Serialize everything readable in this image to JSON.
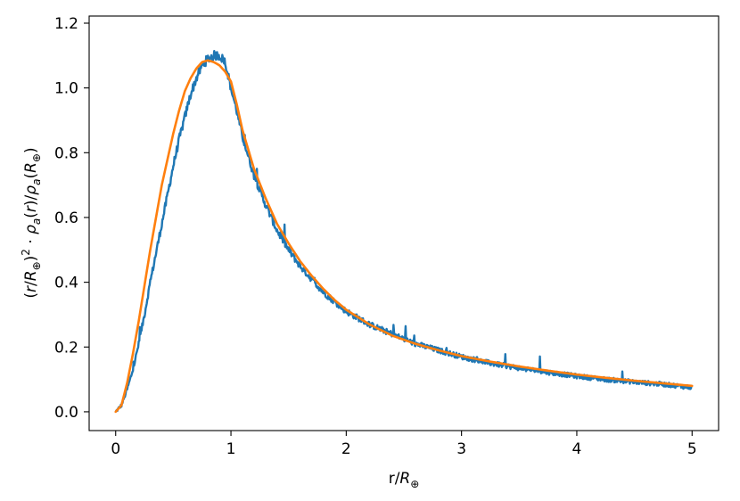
{
  "chart_data": {
    "type": "line",
    "title": "",
    "xlabel": "r/R⊕",
    "ylabel": "(r/R⊕)²·ρa(r)/ρa(R⊕)",
    "xlim": [
      -0.23,
      5.23
    ],
    "ylim": [
      -0.058,
      1.222
    ],
    "xticks": [
      0,
      1,
      2,
      3,
      4,
      5
    ],
    "yticks": [
      0.0,
      0.2,
      0.4,
      0.6,
      0.8,
      1.0,
      1.2
    ],
    "xtick_labels": [
      "0",
      "1",
      "2",
      "3",
      "4",
      "5"
    ],
    "ytick_labels": [
      "0.0",
      "0.2",
      "0.4",
      "0.6",
      "0.8",
      "1.0",
      "1.2"
    ],
    "grid": false,
    "legend": "none",
    "series": [
      {
        "style": "noisy-histogram",
        "color": "#1f77b4",
        "x": [
          0,
          0.05,
          0.1,
          0.15,
          0.2,
          0.25,
          0.3,
          0.35,
          0.4,
          0.45,
          0.5,
          0.55,
          0.6,
          0.65,
          0.7,
          0.75,
          0.8,
          0.85,
          0.9,
          0.95,
          1.0,
          1.05,
          1.1,
          1.15,
          1.2,
          1.3,
          1.4,
          1.5,
          1.6,
          1.7,
          1.8,
          1.9,
          2.0,
          2.2,
          2.4,
          2.6,
          2.8,
          3.0,
          3.25,
          3.5,
          3.75,
          4.0,
          4.25,
          4.5,
          4.75,
          5.0
        ],
        "y": [
          0.0,
          0.02,
          0.07,
          0.13,
          0.21,
          0.3,
          0.4,
          0.49,
          0.58,
          0.67,
          0.76,
          0.84,
          0.91,
          0.98,
          1.03,
          1.07,
          1.09,
          1.1,
          1.1,
          1.08,
          1.0,
          0.93,
          0.85,
          0.79,
          0.73,
          0.64,
          0.56,
          0.5,
          0.45,
          0.41,
          0.37,
          0.34,
          0.31,
          0.27,
          0.24,
          0.21,
          0.19,
          0.17,
          0.15,
          0.135,
          0.122,
          0.11,
          0.1,
          0.092,
          0.085,
          0.075
        ]
      },
      {
        "style": "smooth",
        "color": "#ff7f0e",
        "x": [
          0,
          0.05,
          0.1,
          0.15,
          0.2,
          0.25,
          0.3,
          0.35,
          0.4,
          0.45,
          0.5,
          0.55,
          0.6,
          0.65,
          0.7,
          0.75,
          0.8,
          0.85,
          0.9,
          0.95,
          1.0,
          1.05,
          1.1,
          1.15,
          1.2,
          1.3,
          1.4,
          1.5,
          1.6,
          1.7,
          1.8,
          1.9,
          2.0,
          2.2,
          2.4,
          2.6,
          2.8,
          3.0,
          3.25,
          3.5,
          3.75,
          4.0,
          4.25,
          4.5,
          4.75,
          5.0
        ],
        "y": [
          0.0,
          0.02,
          0.09,
          0.18,
          0.28,
          0.39,
          0.5,
          0.6,
          0.7,
          0.78,
          0.86,
          0.93,
          0.99,
          1.03,
          1.06,
          1.08,
          1.085,
          1.08,
          1.07,
          1.05,
          1.02,
          0.95,
          0.87,
          0.81,
          0.75,
          0.66,
          0.58,
          0.52,
          0.465,
          0.42,
          0.38,
          0.345,
          0.315,
          0.27,
          0.235,
          0.21,
          0.19,
          0.172,
          0.155,
          0.14,
          0.127,
          0.115,
          0.105,
          0.096,
          0.088,
          0.08
        ]
      }
    ]
  }
}
